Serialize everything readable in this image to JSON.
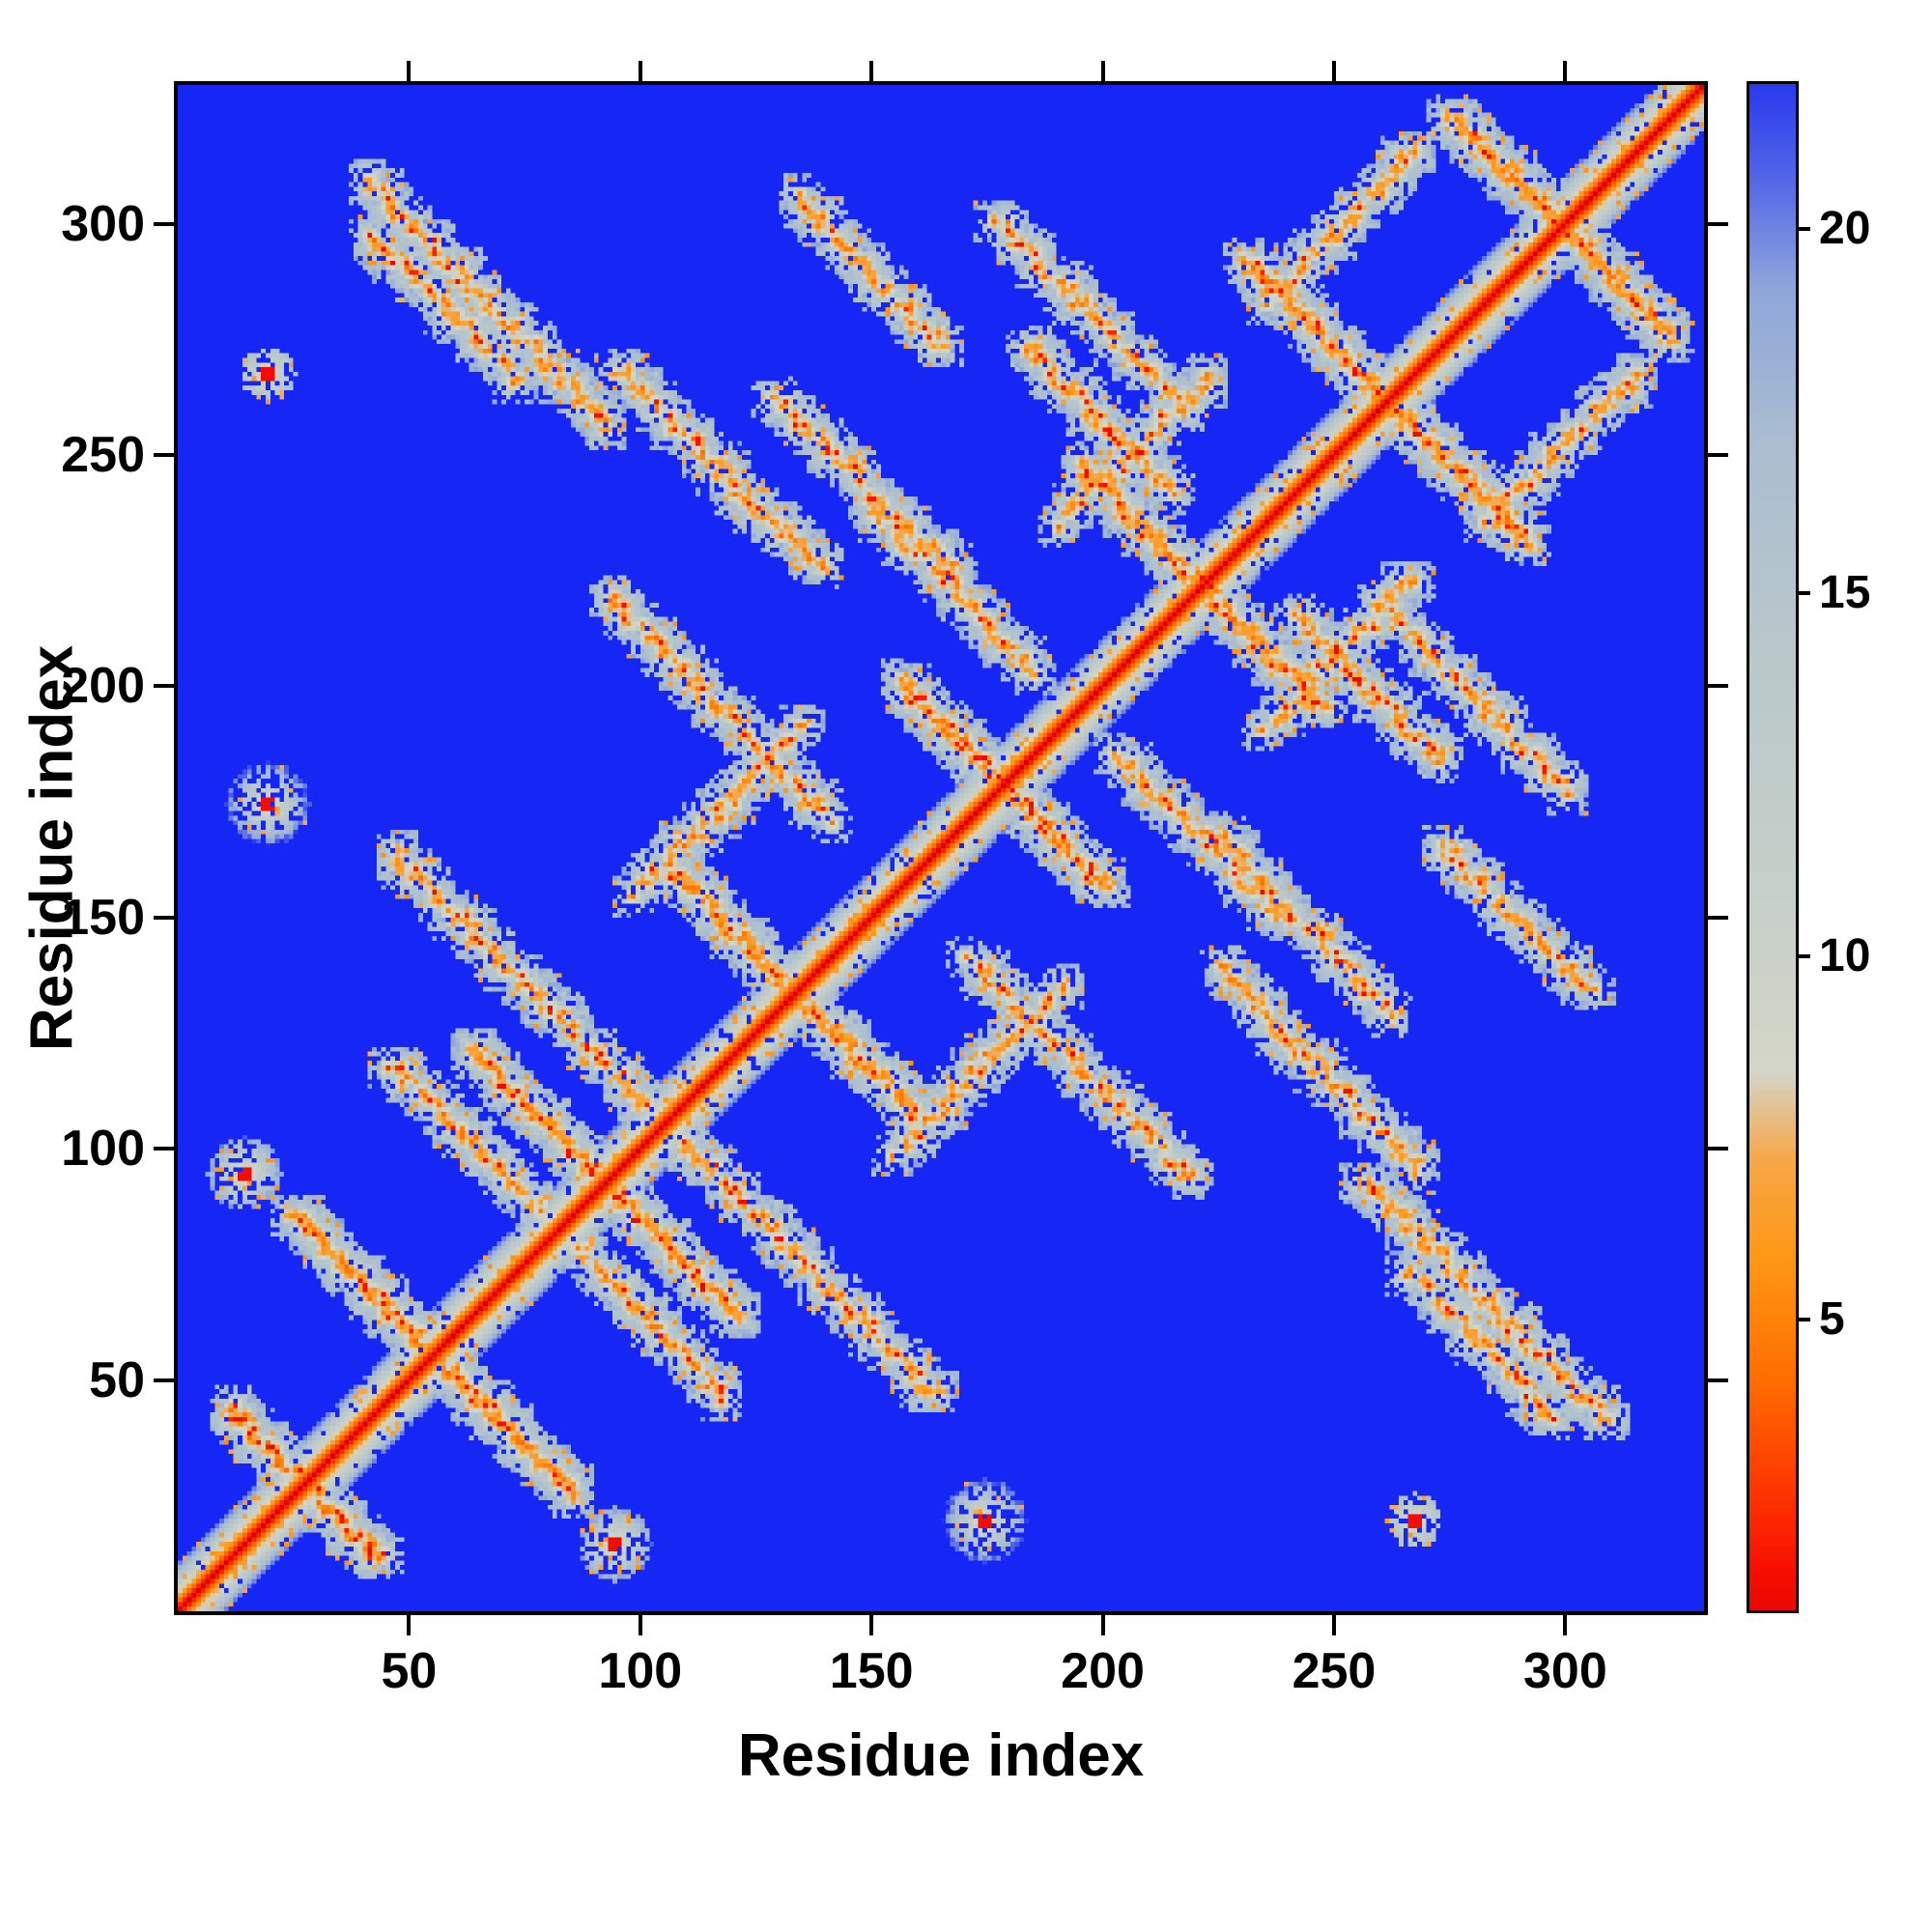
{
  "figure": {
    "background": "#ffffff"
  },
  "chart_data": {
    "type": "heatmap",
    "title": "",
    "xlabel": "Residue index",
    "ylabel": "Residue index",
    "x_range": [
      0,
      330
    ],
    "y_range": [
      0,
      330
    ],
    "x_ticks": [
      50,
      100,
      150,
      200,
      250,
      300
    ],
    "y_ticks": [
      50,
      100,
      150,
      200,
      250,
      300
    ],
    "n_residues": 330,
    "symmetric": true,
    "grid": false,
    "background_value": 23.5,
    "background_color": "#1626f5",
    "colorbar": {
      "position": "right",
      "ticks": [
        5,
        10,
        15,
        20
      ],
      "vmin": 1,
      "vmax": 22
    },
    "colormap_stops": [
      [
        0.0,
        "#d00000"
      ],
      [
        1.5,
        "#f70d00"
      ],
      [
        2.8,
        "#ff3c00"
      ],
      [
        4.2,
        "#ff6f00"
      ],
      [
        5.8,
        "#ff9714"
      ],
      [
        7.2,
        "#f7a748"
      ],
      [
        8.4,
        "#d4d6c8"
      ],
      [
        11.0,
        "#c6cfc9"
      ],
      [
        14.0,
        "#bac8ca"
      ],
      [
        17.0,
        "#abbed0"
      ],
      [
        19.2,
        "#8fa6da"
      ],
      [
        20.8,
        "#5064e8"
      ],
      [
        22.2,
        "#2334f0"
      ],
      [
        23.5,
        "#1626f5"
      ]
    ],
    "features": {
      "diagonal": {
        "halo_width": 10,
        "slope": 2.0
      },
      "hairpins": [
        {
          "center": 28,
          "arm": 16
        },
        {
          "center": 56,
          "arm": 30
        },
        {
          "center": 93,
          "arm": 28
        },
        {
          "center": 134,
          "arm": 26
        },
        {
          "center": 179,
          "arm": 22
        },
        {
          "center": 222,
          "arm": 26
        },
        {
          "center": 262,
          "arm": 30
        },
        {
          "center": 300,
          "arm": 24
        }
      ],
      "anti_segments": [
        {
          "x": 75,
          "y": 137,
          "arm": 28
        },
        {
          "x": 117,
          "y": 196,
          "arm": 24
        },
        {
          "x": 150,
          "y": 243,
          "arm": 20
        },
        {
          "x": 196,
          "y": 283,
          "arm": 18
        },
        {
          "x": 247,
          "y": 118,
          "arm": 22
        },
        {
          "x": 283,
          "y": 68,
          "arm": 26
        },
        {
          "x": 58,
          "y": 283,
          "arm": 16
        },
        {
          "x": 103,
          "y": 63,
          "arm": 16
        },
        {
          "x": 168,
          "y": 222,
          "arm": 18
        },
        {
          "x": 200,
          "y": 258,
          "arm": 16
        },
        {
          "x": 290,
          "y": 150,
          "arm": 16
        }
      ],
      "parallel_segments": [
        {
          "x": 118,
          "y": 174,
          "arm": 18
        },
        {
          "x": 208,
          "y": 252,
          "arm": 16
        },
        {
          "x": 252,
          "y": 300,
          "arm": 16
        }
      ],
      "blobs": [
        {
          "x": 175,
          "y": 20,
          "r": 9
        },
        {
          "x": 15,
          "y": 95,
          "r": 8
        },
        {
          "x": 20,
          "y": 268,
          "r": 6
        }
      ],
      "texture": {
        "hole_prob": 0.1,
        "speckle_prob": 0.06,
        "seed": 1337
      }
    }
  }
}
